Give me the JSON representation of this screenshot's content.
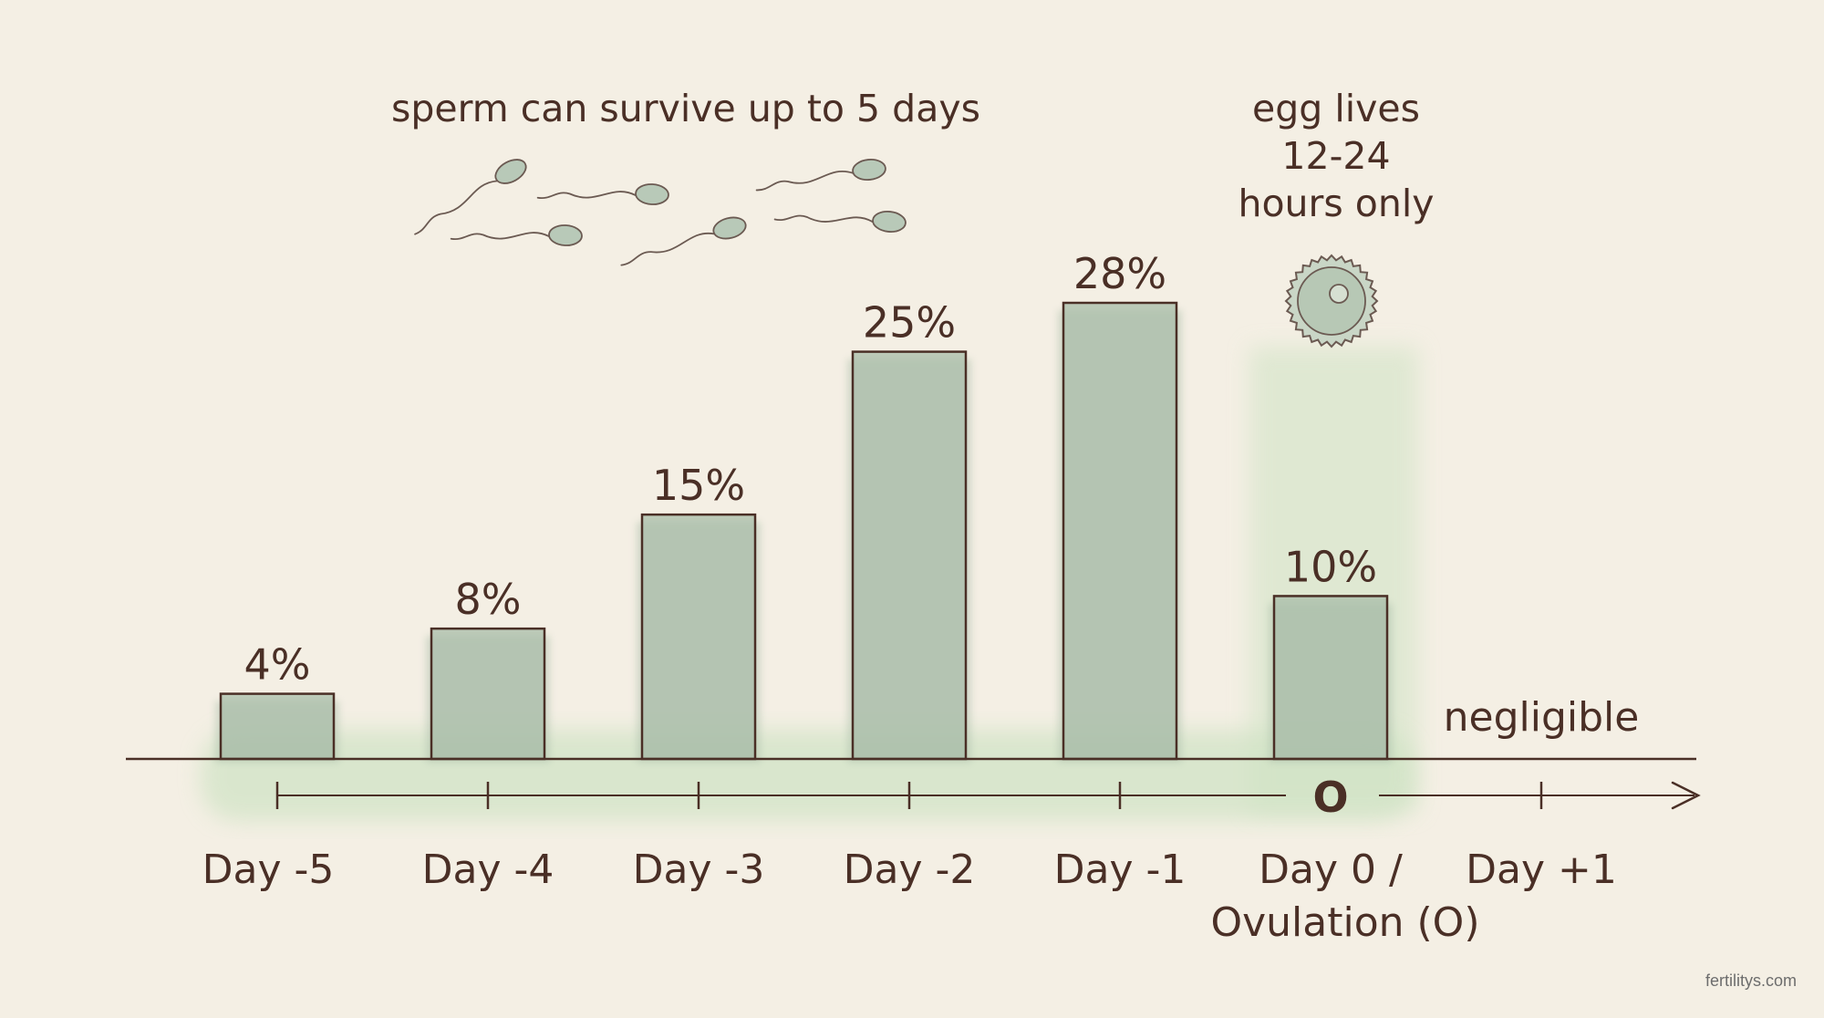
{
  "chart_data": {
    "type": "bar",
    "categories": [
      "Day -5",
      "Day -4",
      "Day -3",
      "Day -2",
      "Day -1",
      "Day 0 / Ovulation (O)",
      "Day +1"
    ],
    "category_lines": [
      [
        "Day -5"
      ],
      [
        "Day -4"
      ],
      [
        "Day -3"
      ],
      [
        "Day -2"
      ],
      [
        "Day -1"
      ],
      [
        "Day 0 /",
        "Ovulation (O)"
      ],
      [
        "Day +1"
      ]
    ],
    "values": [
      4,
      8,
      15,
      25,
      28,
      10,
      null
    ],
    "data_labels": [
      "4%",
      "8%",
      "15%",
      "25%",
      "28%",
      "10%",
      "negligible"
    ],
    "ylim": [
      0,
      36
    ],
    "ovulation_marker": "O",
    "highlight_category": "Day 0 / Ovulation (O)",
    "annotations": {
      "sperm": "sperm can survive up to 5 days",
      "egg": [
        "egg lives",
        "12-24",
        "hours only"
      ]
    },
    "colors": {
      "bar_fill": "#a9bda9",
      "bar_stroke": "#4a2f26",
      "text": "#4a2f26",
      "highlight": "#cfe3c4",
      "background": "#f4efe4"
    }
  },
  "watermark": "fertilitys.com"
}
